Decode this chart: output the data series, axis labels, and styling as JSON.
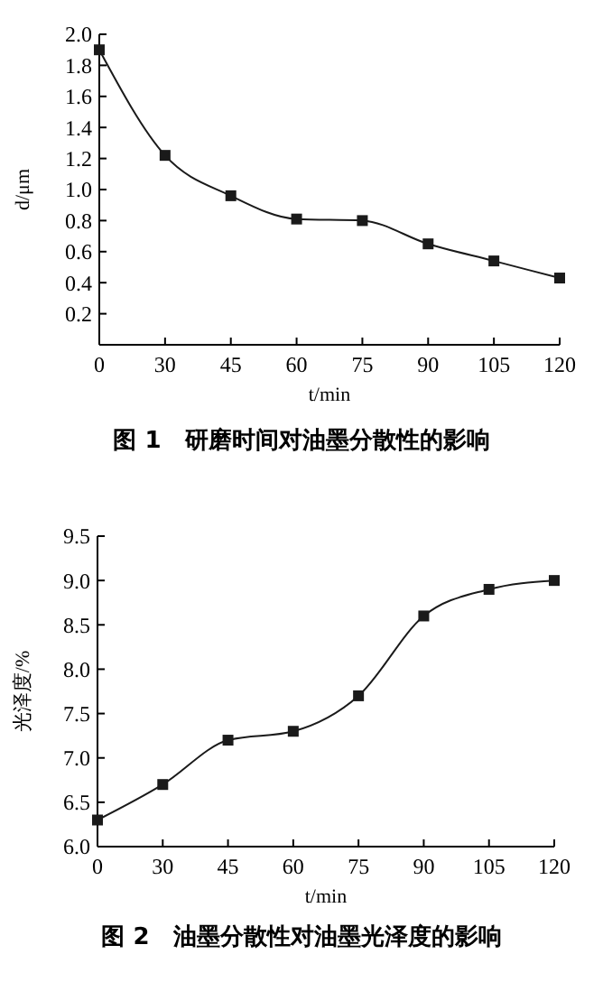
{
  "chart_data": [
    {
      "type": "line",
      "title": "图 1　研磨时间对油墨分散性的影响",
      "xlabel": "t/min",
      "ylabel": "d/μm",
      "categories": [
        "0",
        "30",
        "45",
        "60",
        "75",
        "90",
        "105",
        "120"
      ],
      "ylim": [
        0,
        2.0
      ],
      "yticks": [
        0.2,
        0.4,
        0.6,
        0.8,
        {
          "value": 1.0,
          "label": "1.0"
        },
        1.2,
        1.4,
        1.6,
        1.8,
        {
          "value": 2.0,
          "label": "2.0"
        }
      ],
      "grid": false,
      "marker": "square",
      "line_style": "solid",
      "series": [
        {
          "color": "#1a1a1a",
          "values": [
            1.9,
            1.22,
            0.96,
            0.81,
            0.8,
            0.65,
            0.54,
            0.43
          ]
        }
      ]
    },
    {
      "type": "line",
      "title": "图 2　油墨分散性对油墨光泽度的影响",
      "xlabel": "t/min",
      "ylabel": "光泽度/%",
      "categories": [
        "0",
        "30",
        "45",
        "60",
        "75",
        "90",
        "105",
        "120"
      ],
      "ylim": [
        6.0,
        9.5
      ],
      "yticks": [
        {
          "value": 6.0,
          "label": "6.0"
        },
        6.5,
        {
          "value": 7.0,
          "label": "7.0"
        },
        7.5,
        {
          "value": 8.0,
          "label": "8.0"
        },
        8.5,
        {
          "value": 9.0,
          "label": "9.0"
        },
        9.5
      ],
      "grid": false,
      "marker": "square",
      "line_style": "solid",
      "series": [
        {
          "color": "#1a1a1a",
          "values": [
            6.3,
            6.7,
            7.2,
            7.3,
            7.7,
            8.6,
            8.9,
            9.0
          ]
        }
      ]
    }
  ]
}
